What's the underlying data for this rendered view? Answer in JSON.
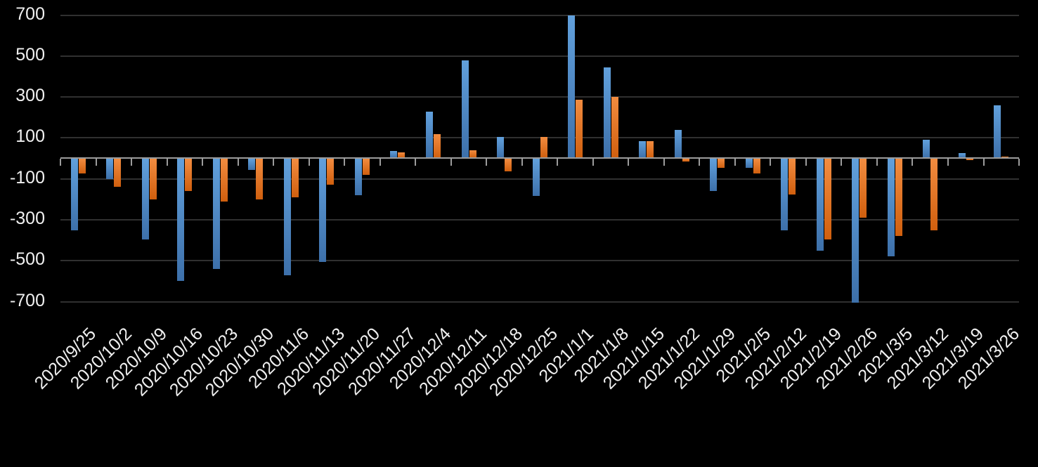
{
  "chart_data": {
    "type": "bar",
    "title": "",
    "legend": "none",
    "grid": "horizontal",
    "categories": [
      "2020/9/25",
      "2020/10/2",
      "2020/10/9",
      "2020/10/16",
      "2020/10/23",
      "2020/10/30",
      "2020/11/6",
      "2020/11/13",
      "2020/11/20",
      "2020/11/27",
      "2020/12/4",
      "2020/12/11",
      "2020/12/18",
      "2020/12/25",
      "2021/1/1",
      "2021/1/8",
      "2021/1/15",
      "2021/1/22",
      "2021/1/29",
      "2021/2/5",
      "2021/2/12",
      "2021/2/19",
      "2021/2/26",
      "2021/3/5",
      "2021/3/12",
      "2021/3/19",
      "2021/3/26"
    ],
    "series": [
      {
        "name": "blue",
        "color_top": "#61a0dc",
        "color_bottom": "#3d70aa",
        "values": [
          -350,
          -100,
          -395,
          -600,
          -540,
          -55,
          -570,
          -505,
          -180,
          35,
          230,
          480,
          105,
          -185,
          700,
          445,
          85,
          140,
          -160,
          -45,
          -350,
          -450,
          -705,
          -480,
          90,
          25,
          260
        ]
      },
      {
        "name": "orange",
        "color_top": "#f28c40",
        "color_bottom": "#d05f0e",
        "values": [
          -75,
          -140,
          -200,
          -160,
          -210,
          -200,
          -190,
          -130,
          -80,
          30,
          120,
          40,
          -65,
          105,
          285,
          300,
          85,
          -15,
          -45,
          -75,
          -175,
          -395,
          -290,
          -380,
          -350,
          -10,
          10
        ]
      }
    ],
    "y_axis": {
      "ticks": [
        700,
        500,
        300,
        100,
        -100,
        -300,
        -500,
        -700
      ],
      "range": [
        -700,
        700
      ]
    },
    "x_axis": {
      "label_rotation_deg": -45
    },
    "colors": {
      "background": "#000000",
      "gridline": "#303030",
      "axis_line": "#9c9c9c",
      "text": "#f0f0f0"
    }
  }
}
